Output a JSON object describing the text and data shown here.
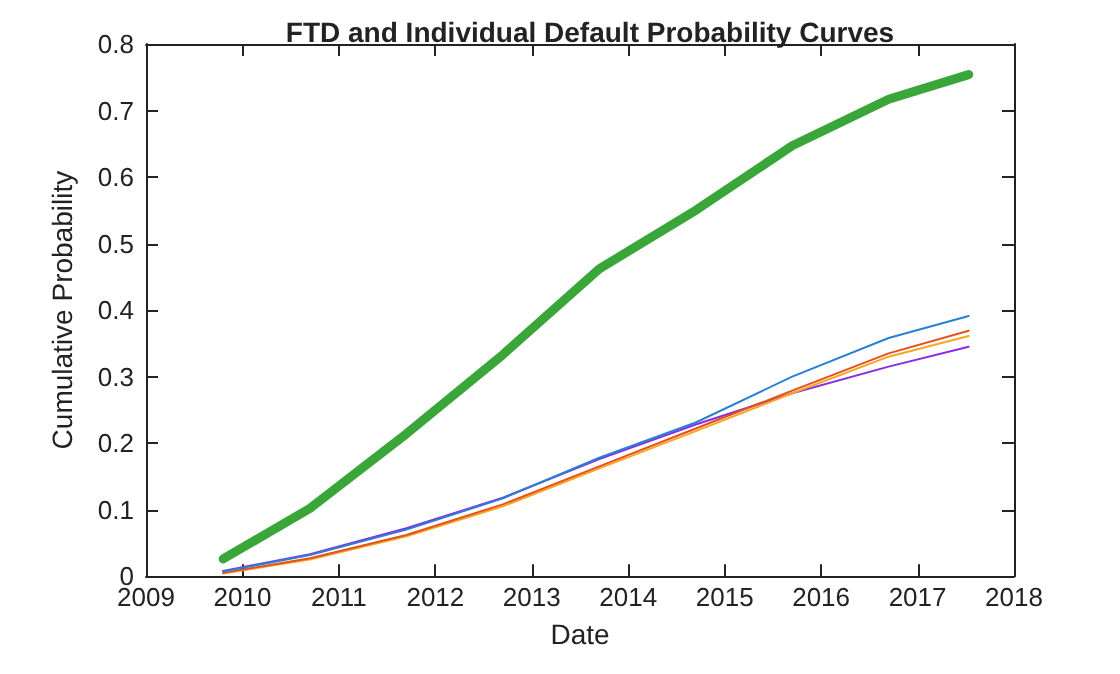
{
  "chart_data": {
    "type": "line",
    "title": "FTD and Individual Default Probability Curves",
    "xlabel": "Date",
    "ylabel": "Cumulative Probability",
    "x": [
      2009.8,
      2010.7,
      2011.7,
      2012.7,
      2013.7,
      2014.7,
      2015.7,
      2016.7,
      2017.53
    ],
    "series": [
      {
        "color": "#3aa63a",
        "values": [
          0.026,
          0.102,
          0.214,
          0.333,
          0.462,
          0.55,
          0.647,
          0.717,
          0.754
        ]
      },
      {
        "color": "#2a7fd4",
        "values": [
          0.007,
          0.032,
          0.07,
          0.117,
          0.178,
          0.231,
          0.3,
          0.358,
          0.391
        ]
      },
      {
        "color": "#e8501a",
        "values": [
          0.005,
          0.027,
          0.062,
          0.108,
          0.165,
          0.222,
          0.279,
          0.335,
          0.369
        ]
      },
      {
        "color": "#f5a623",
        "values": [
          0.004,
          0.025,
          0.06,
          0.105,
          0.162,
          0.218,
          0.275,
          0.33,
          0.361
        ]
      },
      {
        "color": "#8a2be2",
        "values": [
          0.008,
          0.033,
          0.072,
          0.118,
          0.176,
          0.228,
          0.275,
          0.315,
          0.345
        ]
      }
    ],
    "xlim": [
      2009,
      2018
    ],
    "xticks": [
      2009,
      2010,
      2011,
      2012,
      2013,
      2014,
      2015,
      2016,
      2017,
      2018
    ],
    "ylim": [
      0,
      0.8
    ],
    "yticks": [
      0,
      0.1,
      0.2,
      0.3,
      0.4,
      0.5,
      0.6,
      0.7,
      0.8
    ],
    "grid": false,
    "marker": "none",
    "line_style": "solid"
  }
}
